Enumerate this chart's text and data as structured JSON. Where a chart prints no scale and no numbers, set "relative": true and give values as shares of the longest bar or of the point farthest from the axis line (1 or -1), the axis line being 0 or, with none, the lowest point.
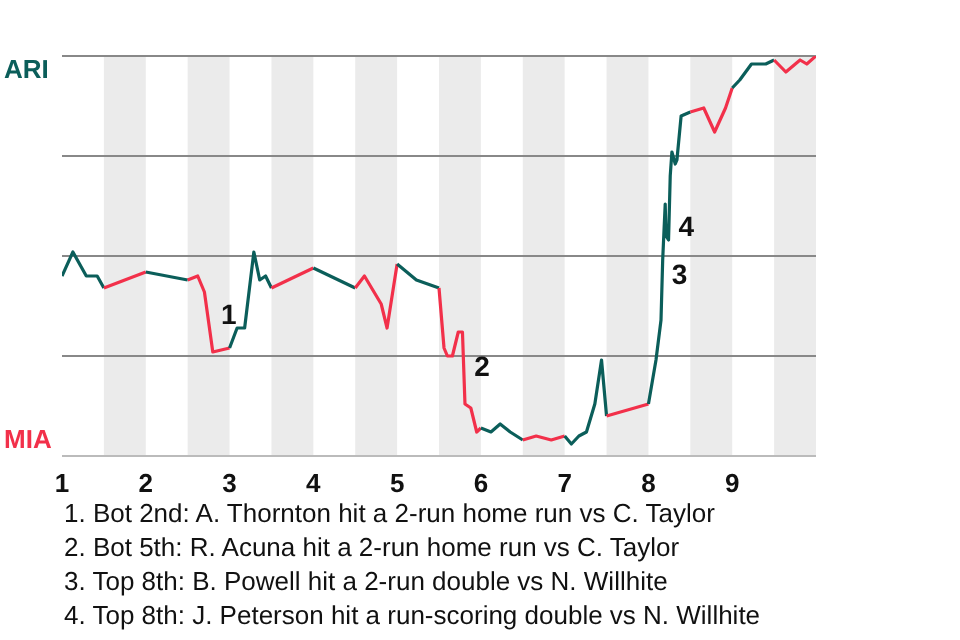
{
  "chart_data": {
    "type": "line",
    "relative": true,
    "series": [
      {
        "color": "#0b5e5a",
        "x": [
          1,
          1.13,
          1.29,
          1.42,
          1.5
        ],
        "values": [
          0.45,
          0.51,
          0.45,
          0.45,
          0.42
        ]
      },
      {
        "color": "#f2304a",
        "x": [
          1.5,
          2
        ],
        "values": [
          0.42,
          0.46
        ]
      },
      {
        "color": "#0b5e5a",
        "x": [
          2,
          2.5
        ],
        "values": [
          0.46,
          0.44
        ]
      },
      {
        "color": "#f2304a",
        "x": [
          2.5,
          2.62,
          2.7,
          2.8,
          3
        ],
        "values": [
          0.44,
          0.45,
          0.41,
          0.26,
          0.27
        ]
      },
      {
        "color": "#0b5e5a",
        "x": [
          3,
          3.09,
          3.18,
          3.29,
          3.36,
          3.43,
          3.5
        ],
        "values": [
          0.27,
          0.32,
          0.32,
          0.51,
          0.44,
          0.45,
          0.42
        ]
      },
      {
        "color": "#f2304a",
        "x": [
          3.5,
          4
        ],
        "values": [
          0.42,
          0.47
        ]
      },
      {
        "color": "#0b5e5a",
        "x": [
          4,
          4.5
        ],
        "values": [
          0.47,
          0.42
        ]
      },
      {
        "color": "#f2304a",
        "x": [
          4.5,
          4.61,
          4.81,
          4.88,
          5
        ],
        "values": [
          0.42,
          0.45,
          0.38,
          0.32,
          0.48
        ]
      },
      {
        "color": "#0b5e5a",
        "x": [
          5,
          5.23,
          5.5
        ],
        "values": [
          0.48,
          0.44,
          0.42
        ]
      },
      {
        "color": "#f2304a",
        "x": [
          5.5,
          5.56,
          5.6,
          5.66,
          5.73,
          5.78,
          5.81,
          5.88,
          5.95,
          6
        ],
        "values": [
          0.42,
          0.27,
          0.25,
          0.25,
          0.31,
          0.31,
          0.13,
          0.12,
          0.06,
          0.07
        ]
      },
      {
        "color": "#0b5e5a",
        "x": [
          6,
          6.12,
          6.23,
          6.35,
          6.5
        ],
        "values": [
          0.07,
          0.06,
          0.08,
          0.06,
          0.04
        ]
      },
      {
        "color": "#f2304a",
        "x": [
          6.5,
          6.66,
          6.84,
          7
        ],
        "values": [
          0.04,
          0.05,
          0.04,
          0.05
        ]
      },
      {
        "color": "#0b5e5a",
        "x": [
          7,
          7.08,
          7.17,
          7.26,
          7.36,
          7.44,
          7.5
        ],
        "values": [
          0.05,
          0.03,
          0.05,
          0.06,
          0.13,
          0.24,
          0.1
        ]
      },
      {
        "color": "#f2304a",
        "x": [
          7.5,
          8
        ],
        "values": [
          0.1,
          0.13
        ]
      },
      {
        "color": "#0b5e5a",
        "x": [
          8,
          8.09,
          8.15,
          8.17,
          8.2,
          8.21,
          8.24,
          8.26,
          8.28,
          8.32,
          8.34,
          8.39,
          8.5
        ],
        "values": [
          0.13,
          0.24,
          0.34,
          0.49,
          0.63,
          0.55,
          0.54,
          0.7,
          0.76,
          0.73,
          0.74,
          0.85,
          0.86
        ]
      },
      {
        "color": "#f2304a",
        "x": [
          8.5,
          8.66,
          8.79,
          8.92,
          9
        ],
        "values": [
          0.86,
          0.87,
          0.81,
          0.87,
          0.92
        ]
      },
      {
        "color": "#0b5e5a",
        "x": [
          9,
          9.09,
          9.23,
          9.4,
          9.5
        ],
        "values": [
          0.92,
          0.94,
          0.98,
          0.98,
          0.99
        ]
      },
      {
        "color": "#f2304a",
        "x": [
          9.5,
          9.64,
          9.81,
          9.89,
          10
        ],
        "values": [
          0.99,
          0.96,
          0.99,
          0.98,
          1
        ]
      }
    ],
    "xlim": [
      1,
      10
    ],
    "xticks": [
      1,
      2,
      3,
      4,
      5,
      6,
      7,
      8,
      9
    ],
    "ref_lines": [
      {
        "axis": "y",
        "value": 0.25,
        "color": "#888888"
      },
      {
        "axis": "y",
        "value": 0.5,
        "color": "#888888"
      },
      {
        "axis": "y",
        "value": 0.75,
        "color": "#888888"
      },
      {
        "axis": "y",
        "value": 1,
        "color": "#888888"
      }
    ],
    "marker": "none",
    "line_style": "solid",
    "bands": [
      {
        "axis": "x",
        "from": 1.5,
        "to": 2,
        "color": "#ebebeb"
      },
      {
        "axis": "x",
        "from": 2.5,
        "to": 3,
        "color": "#ebebeb"
      },
      {
        "axis": "x",
        "from": 3.5,
        "to": 4,
        "color": "#ebebeb"
      },
      {
        "axis": "x",
        "from": 4.5,
        "to": 5,
        "color": "#ebebeb"
      },
      {
        "axis": "x",
        "from": 5.5,
        "to": 6,
        "color": "#ebebeb"
      },
      {
        "axis": "x",
        "from": 6.5,
        "to": 7,
        "color": "#ebebeb"
      },
      {
        "axis": "x",
        "from": 7.5,
        "to": 8,
        "color": "#ebebeb"
      },
      {
        "axis": "x",
        "from": 8.5,
        "to": 9,
        "color": "#ebebeb"
      },
      {
        "axis": "x",
        "from": 9.5,
        "to": 10,
        "color": "#ebebeb"
      }
    ],
    "annotations": [
      "ARI",
      "MIA",
      {
        "text": "1",
        "x": 2.78,
        "y": 0.32
      },
      {
        "text": "2",
        "x": 5.8,
        "y": 0.19
      },
      {
        "text": "3",
        "x": 8.16,
        "y": 0.42
      },
      {
        "text": "4",
        "x": 8.24,
        "y": 0.54
      },
      "1. Bot 2nd: A. Thornton hit a 2-run home run vs C. Taylor",
      "2. Bot 5th: R. Acuna hit a 2-run home run vs C. Taylor",
      "3. Top 8th: B. Powell hit a 2-run double vs N. Willhite",
      "4. Top 8th: J. Peterson hit a run-scoring double vs N. Willhite"
    ]
  }
}
